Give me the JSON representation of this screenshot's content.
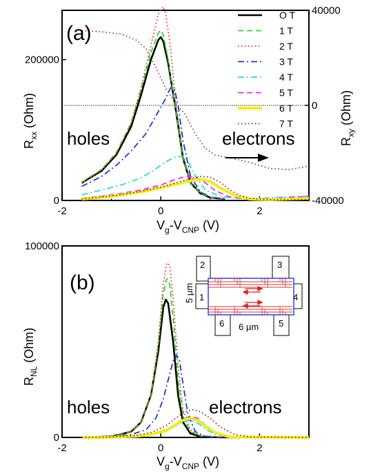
{
  "chart_data": [
    {
      "panel": "(a)",
      "type": "line",
      "xlabel_main": "V",
      "xlabel_sub1": "g",
      "xlabel_mid": "-V",
      "xlabel_sub2": "CNP",
      "xlabel_unit": " (V)",
      "ylabel_main": "R",
      "ylabel_sub": "xx",
      "ylabel_unit": " (Ohm)",
      "y2label_main": "R",
      "y2label_sub": "xy",
      "y2label_unit": " (Ohm)",
      "xlim": [
        -2,
        3
      ],
      "ylim": [
        0,
        270000
      ],
      "y2lim": [
        -40000,
        40000
      ],
      "xticks": [
        "-2",
        "0",
        "2"
      ],
      "yticks": [
        "0",
        "200000"
      ],
      "y2ticks": [
        "-40000",
        "0",
        "40000"
      ],
      "annotations": [
        "holes",
        "electrons"
      ],
      "series": [
        {
          "name": "O T",
          "color": "#000000",
          "dash": "solid",
          "x": [
            -1.6,
            -1.2,
            -0.9,
            -0.6,
            -0.4,
            -0.2,
            -0.05,
            0,
            0.05,
            0.15,
            0.3,
            0.45,
            0.6,
            0.8,
            1.0,
            1.3
          ],
          "values": [
            25000,
            42000,
            65000,
            105000,
            150000,
            200000,
            228000,
            232000,
            226000,
            195000,
            130000,
            60000,
            25000,
            10000,
            4000,
            2000
          ]
        },
        {
          "name": "1 T",
          "color": "#22dd22",
          "dash": "dash",
          "x": [
            -1.6,
            -1.2,
            -0.9,
            -0.6,
            -0.4,
            -0.2,
            -0.05,
            0,
            0.05,
            0.15,
            0.3,
            0.45,
            0.6,
            0.8,
            1.0,
            1.3
          ],
          "values": [
            26000,
            44000,
            68000,
            110000,
            158000,
            210000,
            238000,
            242000,
            235000,
            200000,
            130000,
            60000,
            24000,
            10000,
            4000,
            2000
          ]
        },
        {
          "name": "2 T",
          "color": "#dd2222",
          "dash": "dot",
          "x": [
            -1.6,
            -1.2,
            -0.9,
            -0.6,
            -0.4,
            -0.2,
            -0.05,
            0.05,
            0.1,
            0.2,
            0.3,
            0.45,
            0.6,
            0.8,
            1.0,
            1.3
          ],
          "values": [
            24000,
            42000,
            66000,
            110000,
            160000,
            220000,
            265000,
            275000,
            265000,
            215000,
            140000,
            65000,
            28000,
            12000,
            5000,
            2000
          ]
        },
        {
          "name": "3 T",
          "color": "#2233dd",
          "dash": "dashdot",
          "x": [
            -1.6,
            -1.2,
            -0.9,
            -0.6,
            -0.3,
            -0.1,
            0.1,
            0.2,
            0.28,
            0.35,
            0.45,
            0.6,
            0.8,
            1.0,
            1.3
          ],
          "values": [
            20000,
            34000,
            50000,
            70000,
            95000,
            120000,
            145000,
            160000,
            158000,
            135000,
            85000,
            35000,
            12000,
            5000,
            2000
          ]
        },
        {
          "name": "4 T",
          "color": "#22dddd",
          "dash": "dashdot",
          "x": [
            -1.6,
            -1.2,
            -0.8,
            -0.4,
            -0.1,
            0.1,
            0.3,
            0.45,
            0.55,
            0.7,
            0.9,
            1.2,
            1.5,
            2.0,
            2.5,
            3.0
          ],
          "values": [
            8000,
            15000,
            22000,
            32000,
            45000,
            55000,
            62000,
            63000,
            55000,
            35000,
            15000,
            6000,
            3000,
            3000,
            5000,
            6000
          ]
        },
        {
          "name": "5  T",
          "color": "#ee22ee",
          "dash": "dash",
          "x": [
            -1.6,
            -1.2,
            -0.8,
            -0.4,
            0,
            0.3,
            0.5,
            0.7,
            0.9,
            1.1,
            1.4,
            1.8,
            2.2,
            2.6,
            3.0
          ],
          "values": [
            3000,
            6000,
            10000,
            15000,
            22000,
            30000,
            34000,
            33000,
            25000,
            14000,
            5000,
            2000,
            2000,
            4000,
            6000
          ]
        },
        {
          "name": "6 T",
          "color": "#eeee11",
          "dash": "solid",
          "x": [
            -1.6,
            -1.2,
            -0.8,
            -0.4,
            0,
            0.3,
            0.6,
            0.8,
            1.0,
            1.2,
            1.5,
            1.8,
            2.2,
            2.6,
            3.0
          ],
          "values": [
            2000,
            4000,
            8000,
            12000,
            18000,
            23000,
            28000,
            30000,
            27000,
            18000,
            7000,
            2000,
            1000,
            2000,
            3000
          ]
        },
        {
          "name": "7 T",
          "color": "#8b1a1a",
          "dash": "dot",
          "x": [
            -1.6,
            -1.2,
            -0.8,
            -0.4,
            0,
            0.3,
            0.6,
            0.8,
            1.0,
            1.2,
            1.4,
            1.6,
            1.8,
            2.2,
            2.6,
            3.0
          ],
          "values": [
            2000,
            5000,
            8000,
            13000,
            19000,
            25000,
            31000,
            34000,
            33000,
            26000,
            15000,
            7000,
            3000,
            1000,
            1000,
            1000
          ]
        }
      ],
      "rxy_series": {
        "name": "7 T",
        "color": "#8b1a1a",
        "dash": "dot",
        "x": [
          -1.6,
          -1.2,
          -0.8,
          -0.5,
          -0.3,
          -0.1,
          0.1,
          0.3,
          0.5,
          0.7,
          0.9,
          1.1,
          1.4,
          1.8,
          2.2,
          2.6,
          3.0
        ],
        "values": [
          31500,
          31000,
          30000,
          27500,
          24000,
          16000,
          7000,
          1000,
          -4000,
          -12000,
          -18000,
          -21000,
          -22000,
          -24000,
          -26500,
          -27000,
          -25500
        ]
      }
    },
    {
      "panel": "(b)",
      "type": "line",
      "xlabel_main": "V",
      "xlabel_sub1": "g",
      "xlabel_mid": "-V",
      "xlabel_sub2": "CNP",
      "xlabel_unit": " (V)",
      "ylabel_main": "R",
      "ylabel_sub": "NL",
      "ylabel_unit": " (Ohm)",
      "xlim": [
        -2,
        3
      ],
      "ylim": [
        0,
        100000
      ],
      "xticks": [
        "-2",
        "0",
        "2"
      ],
      "yticks": [
        "0",
        "100000"
      ],
      "annotations": [
        "holes",
        "electrons"
      ],
      "series": [
        {
          "name": "O T",
          "color": "#000000",
          "dash": "solid",
          "x": [
            -1.6,
            -1.0,
            -0.6,
            -0.4,
            -0.2,
            -0.05,
            0.05,
            0.1,
            0.15,
            0.25,
            0.35,
            0.45,
            0.6,
            0.8,
            1.2,
            3.0
          ],
          "values": [
            0,
            500,
            3000,
            8000,
            22000,
            45000,
            68000,
            72000,
            70000,
            50000,
            22000,
            8000,
            2000,
            500,
            0,
            0
          ]
        },
        {
          "name": "1 T",
          "color": "#22dd22",
          "dash": "dash",
          "x": [
            -1.6,
            -1.0,
            -0.6,
            -0.4,
            -0.2,
            -0.05,
            0.05,
            0.12,
            0.18,
            0.25,
            0.35,
            0.45,
            0.6,
            0.8,
            1.2,
            3.0
          ],
          "values": [
            0,
            500,
            3000,
            8000,
            22000,
            48000,
            75000,
            83000,
            80000,
            62000,
            30000,
            11000,
            3000,
            800,
            0,
            0
          ]
        },
        {
          "name": "2 T",
          "color": "#dd2222",
          "dash": "dot",
          "x": [
            -1.6,
            -1.0,
            -0.6,
            -0.4,
            -0.2,
            -0.05,
            0.05,
            0.12,
            0.18,
            0.25,
            0.35,
            0.45,
            0.6,
            0.8,
            1.2,
            3.0
          ],
          "values": [
            0,
            500,
            3000,
            8000,
            22000,
            50000,
            80000,
            91000,
            90000,
            72000,
            38000,
            14000,
            4000,
            1000,
            0,
            0
          ]
        },
        {
          "name": "3 T",
          "color": "#2233dd",
          "dash": "dashdot",
          "x": [
            -1.6,
            -1.0,
            -0.6,
            -0.3,
            -0.1,
            0.05,
            0.15,
            0.25,
            0.32,
            0.38,
            0.45,
            0.55,
            0.7,
            0.9,
            1.2,
            3.0
          ],
          "values": [
            0,
            300,
            1500,
            4000,
            10000,
            20000,
            30000,
            40000,
            43000,
            40000,
            28000,
            12000,
            3000,
            500,
            0,
            0
          ]
        },
        {
          "name": "4 T",
          "color": "#22dddd",
          "dash": "dashdot",
          "x": [
            -1.6,
            -1.0,
            -0.5,
            -0.2,
            0.1,
            0.3,
            0.45,
            0.6,
            0.75,
            0.9,
            1.1,
            1.4,
            3.0
          ],
          "values": [
            0,
            100,
            600,
            1500,
            3500,
            6000,
            8000,
            9000,
            7500,
            4500,
            1500,
            200,
            0
          ]
        },
        {
          "name": "5  T",
          "color": "#ee22ee",
          "dash": "dash",
          "x": [
            -1.6,
            -1.0,
            -0.5,
            -0.2,
            0.1,
            0.3,
            0.45,
            0.6,
            0.75,
            0.9,
            1.1,
            1.4,
            3.0
          ],
          "values": [
            0,
            100,
            700,
            1800,
            4000,
            7000,
            9500,
            11000,
            10000,
            6500,
            2500,
            300,
            0
          ]
        },
        {
          "name": "6 T",
          "color": "#eeee11",
          "dash": "solid",
          "x": [
            -1.6,
            -1.0,
            -0.5,
            -0.2,
            0.1,
            0.3,
            0.45,
            0.6,
            0.75,
            0.9,
            1.1,
            1.4,
            3.0
          ],
          "values": [
            0,
            100,
            600,
            1500,
            3500,
            6500,
            9000,
            10000,
            9000,
            6000,
            2500,
            300,
            0
          ]
        },
        {
          "name": "7 T",
          "color": "#8b1a1a",
          "dash": "dot",
          "x": [
            -1.6,
            -1.0,
            -0.5,
            -0.2,
            0.1,
            0.3,
            0.5,
            0.65,
            0.8,
            1.0,
            1.2,
            1.5,
            1.8,
            3.0
          ],
          "values": [
            0,
            200,
            1000,
            2500,
            6000,
            10000,
            13500,
            14500,
            13500,
            10000,
            5500,
            1500,
            200,
            0
          ]
        }
      ],
      "inset": {
        "contacts": [
          "1",
          "2",
          "3",
          "4",
          "5",
          "6"
        ],
        "width_label": "6 µm",
        "height_label": "5 µm"
      }
    }
  ]
}
